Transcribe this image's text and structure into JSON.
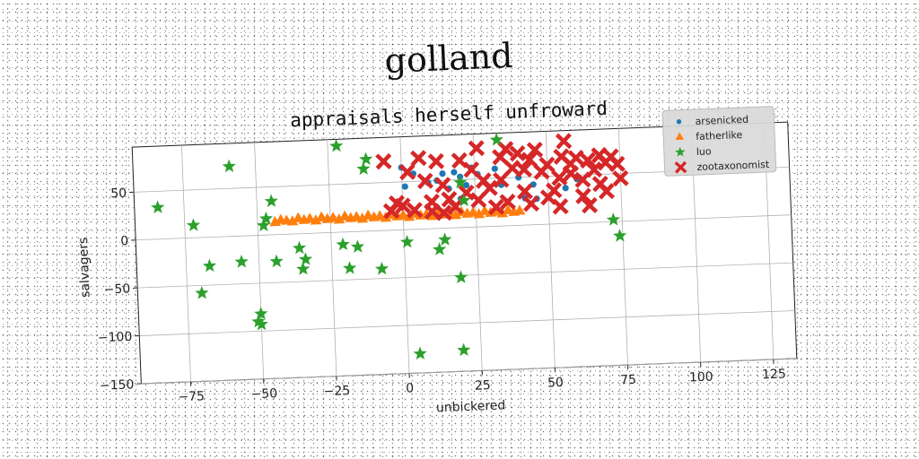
{
  "chart_data": {
    "type": "scatter",
    "title": "golland",
    "subtitle": "appraisals herself unfroward",
    "xlabel": "unbickered",
    "ylabel": "salvagers",
    "xlim": [
      -92,
      133
    ],
    "ylim": [
      -150,
      97
    ],
    "xticks": [
      -75,
      -50,
      -25,
      0,
      25,
      50,
      75,
      100,
      125
    ],
    "yticks": [
      -150,
      -100,
      -50,
      0,
      50
    ],
    "grid": true,
    "legend_position": "top-right",
    "series": [
      {
        "name": "arsenicked",
        "marker": "circle",
        "color": "#1f77b4",
        "points": [
          [
            0,
            65
          ],
          [
            1,
            45
          ],
          [
            4,
            58
          ],
          [
            9,
            48
          ],
          [
            12,
            50
          ],
          [
            14,
            57
          ],
          [
            16,
            41
          ],
          [
            18,
            58
          ],
          [
            20,
            53
          ],
          [
            20,
            30
          ],
          [
            22,
            44
          ],
          [
            24,
            62
          ],
          [
            26,
            55
          ],
          [
            32,
            60
          ],
          [
            34,
            43
          ],
          [
            40,
            50
          ],
          [
            42,
            28
          ],
          [
            45,
            42
          ],
          [
            46,
            27
          ],
          [
            56,
            37
          ],
          [
            58,
            52
          ],
          [
            60,
            46
          ]
        ]
      },
      {
        "name": "fatherlike",
        "marker": "triangle",
        "color": "#ff7f0e",
        "points": [
          [
            -44,
            13
          ],
          [
            -42,
            15
          ],
          [
            -40,
            14
          ],
          [
            -38,
            13
          ],
          [
            -36,
            16
          ],
          [
            -34,
            14
          ],
          [
            -32,
            15
          ],
          [
            -30,
            13
          ],
          [
            -28,
            16
          ],
          [
            -26,
            14
          ],
          [
            -24,
            15
          ],
          [
            -22,
            13
          ],
          [
            -20,
            16
          ],
          [
            -18,
            14
          ],
          [
            -16,
            15
          ],
          [
            -14,
            13
          ],
          [
            -12,
            16
          ],
          [
            -10,
            14
          ],
          [
            -8,
            15
          ],
          [
            -6,
            13
          ],
          [
            -4,
            16
          ],
          [
            -2,
            14
          ],
          [
            0,
            15
          ],
          [
            2,
            13
          ],
          [
            4,
            16
          ],
          [
            6,
            14
          ],
          [
            8,
            15
          ],
          [
            10,
            13
          ],
          [
            12,
            16
          ],
          [
            14,
            14
          ],
          [
            16,
            15
          ],
          [
            18,
            13
          ],
          [
            20,
            16
          ],
          [
            22,
            14
          ],
          [
            24,
            15
          ],
          [
            26,
            13
          ],
          [
            28,
            16
          ],
          [
            30,
            14
          ],
          [
            32,
            15
          ],
          [
            34,
            13
          ],
          [
            36,
            16
          ],
          [
            38,
            14
          ],
          [
            40,
            15
          ]
        ]
      },
      {
        "name": "luo",
        "marker": "star",
        "color": "#2ca02c",
        "points": [
          [
            -84,
            33
          ],
          [
            -72,
            13
          ],
          [
            -70,
            -58
          ],
          [
            -67,
            -30
          ],
          [
            -59,
            73
          ],
          [
            -56,
            -27
          ],
          [
            -51,
            -90
          ],
          [
            -50,
            -82
          ],
          [
            -50,
            -93
          ],
          [
            -48,
            10
          ],
          [
            -47,
            17
          ],
          [
            -45,
            35
          ],
          [
            -44,
            -28
          ],
          [
            -36,
            -15
          ],
          [
            -35,
            -37
          ],
          [
            -34,
            -27
          ],
          [
            -22,
            90
          ],
          [
            -21,
            -13
          ],
          [
            -19,
            -38
          ],
          [
            -16,
            -16
          ],
          [
            -13,
            65
          ],
          [
            -12,
            75
          ],
          [
            -8,
            -40
          ],
          [
            1,
            -13
          ],
          [
            4,
            -130
          ],
          [
            12,
            -22
          ],
          [
            14,
            -12
          ],
          [
            19,
            -52
          ],
          [
            19,
            -128
          ],
          [
            20,
            47
          ],
          [
            21,
            28
          ],
          [
            33,
            90
          ],
          [
            72,
            2
          ],
          [
            74,
            -15
          ]
        ]
      },
      {
        "name": "zootaxonomist",
        "marker": "x",
        "color": "#d62728",
        "points": [
          [
            -6,
            72
          ],
          [
            -4,
            20
          ],
          [
            -2,
            28
          ],
          [
            0,
            25
          ],
          [
            2,
            60
          ],
          [
            4,
            20
          ],
          [
            6,
            74
          ],
          [
            8,
            50
          ],
          [
            10,
            28
          ],
          [
            10,
            18
          ],
          [
            12,
            70
          ],
          [
            14,
            45
          ],
          [
            14,
            16
          ],
          [
            16,
            30
          ],
          [
            18,
            22
          ],
          [
            20,
            70
          ],
          [
            22,
            36
          ],
          [
            24,
            60
          ],
          [
            26,
            82
          ],
          [
            26,
            28
          ],
          [
            28,
            48
          ],
          [
            30,
            40
          ],
          [
            32,
            20
          ],
          [
            34,
            72
          ],
          [
            34,
            48
          ],
          [
            36,
            80
          ],
          [
            36,
            25
          ],
          [
            38,
            60
          ],
          [
            40,
            75
          ],
          [
            42,
            58
          ],
          [
            42,
            35
          ],
          [
            44,
            22
          ],
          [
            44,
            68
          ],
          [
            46,
            78
          ],
          [
            48,
            55
          ],
          [
            50,
            28
          ],
          [
            50,
            62
          ],
          [
            52,
            35
          ],
          [
            54,
            48
          ],
          [
            54,
            18
          ],
          [
            55,
            70
          ],
          [
            56,
            86
          ],
          [
            58,
            62
          ],
          [
            58,
            52
          ],
          [
            60,
            68
          ],
          [
            62,
            45
          ],
          [
            62,
            28
          ],
          [
            64,
            65
          ],
          [
            64,
            18
          ],
          [
            66,
            55
          ],
          [
            68,
            40
          ],
          [
            68,
            70
          ],
          [
            70,
            62
          ],
          [
            70,
            32
          ],
          [
            72,
            68
          ],
          [
            74,
            60
          ],
          [
            75,
            45
          ]
        ]
      }
    ]
  }
}
